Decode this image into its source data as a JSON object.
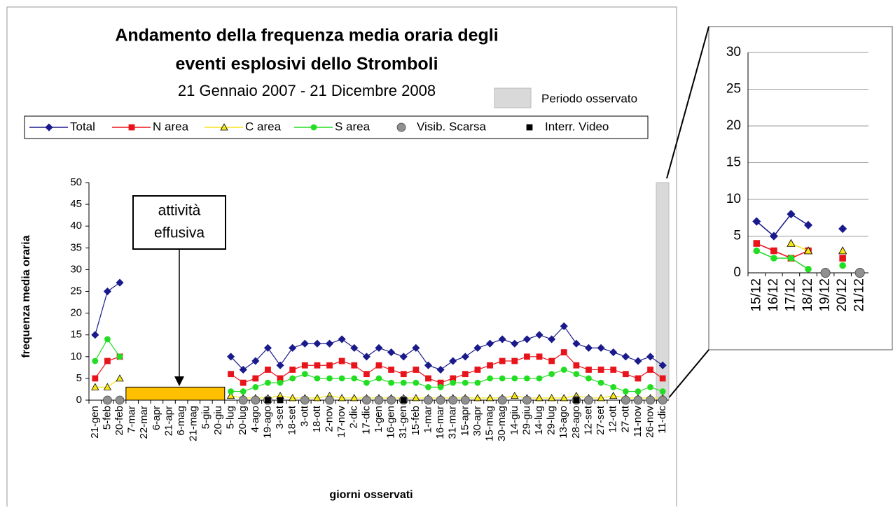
{
  "chart_data": [
    {
      "type": "line",
      "title": [
        "Andamento della frequenza media oraria degli",
        "eventi esplosivi dello Stromboli"
      ],
      "subtitle": "21 Gennaio 2007 - 21 Dicembre 2008",
      "shaded_legend": "Periodo osservato",
      "annotation": [
        "attività",
        "effusiva"
      ],
      "y_label": "frequenza media oraria",
      "x_label": "giorni osservati",
      "categories": [
        "21-gen",
        "5-feb",
        "20-feb",
        "7-mar",
        "22-mar",
        "6-apr",
        "21-apr",
        "6-mag",
        "21-mag",
        "5-giu",
        "20-giu",
        "5-lug",
        "20-lug",
        "4-ago",
        "19-ago",
        "3-set",
        "18-set",
        "3-ott",
        "18-ott",
        "2-nov",
        "17-nov",
        "2-dic",
        "17-dic",
        "1-gen",
        "16-gen",
        "31-gen",
        "15-feb",
        "1-mar",
        "16-mar",
        "31-mar",
        "15-apr",
        "30-apr",
        "15-mag",
        "30-mag",
        "14-giu",
        "29-giu",
        "14-lug",
        "29-lug",
        "13-ago",
        "28-ago",
        "12-set",
        "27-set",
        "12-ott",
        "27-ott",
        "11-nov",
        "26-nov",
        "11-dic"
      ],
      "ylim": [
        0,
        50
      ],
      "yticks": [
        0,
        5,
        10,
        15,
        20,
        25,
        30,
        35,
        40,
        45,
        50
      ],
      "series": [
        {
          "name": "Total",
          "color": "#1a1a8c",
          "marker": "diamond",
          "line": true,
          "values": [
            15,
            25,
            27,
            null,
            null,
            null,
            null,
            null,
            null,
            null,
            null,
            10,
            7,
            9,
            12,
            8,
            12,
            13,
            13,
            13,
            14,
            12,
            10,
            12,
            11,
            10,
            12,
            8,
            7,
            9,
            10,
            12,
            13,
            14,
            13,
            14,
            15,
            14,
            17,
            13,
            12,
            12,
            11,
            10,
            9,
            10,
            8
          ]
        },
        {
          "name": "N area",
          "color": "#e8141c",
          "marker": "square",
          "line": true,
          "values": [
            5,
            9,
            10,
            null,
            null,
            null,
            null,
            null,
            null,
            null,
            null,
            6,
            4,
            5,
            7,
            5,
            7,
            8,
            8,
            8,
            9,
            8,
            6,
            8,
            7,
            6,
            7,
            5,
            4,
            5,
            6,
            7,
            8,
            9,
            9,
            10,
            10,
            9,
            11,
            8,
            7,
            7,
            7,
            6,
            5,
            7,
            5
          ]
        },
        {
          "name": "C area",
          "color": "#f5e61a",
          "marker": "triangle",
          "line": true,
          "values": [
            3,
            3,
            5,
            null,
            null,
            null,
            null,
            null,
            null,
            null,
            null,
            1,
            0.5,
            0.5,
            0.5,
            1,
            0.5,
            0.5,
            0.5,
            1,
            0.5,
            0.5,
            0.5,
            0.5,
            0.5,
            0.5,
            0.5,
            0.5,
            0.5,
            0.5,
            0.5,
            0.5,
            0.5,
            0.5,
            1,
            0.5,
            0.5,
            0.5,
            0.5,
            1,
            0.5,
            0.5,
            1,
            0.5,
            0.5,
            0.5,
            0.5
          ]
        },
        {
          "name": "S area",
          "color": "#22dd22",
          "marker": "circle",
          "line": true,
          "values": [
            9,
            14,
            10,
            null,
            null,
            null,
            null,
            null,
            null,
            null,
            null,
            2,
            2,
            3,
            4,
            4,
            5,
            6,
            5,
            5,
            5,
            5,
            4,
            5,
            4,
            4,
            4,
            3,
            3,
            4,
            4,
            4,
            5,
            5,
            5,
            5,
            5,
            6,
            7,
            6,
            5,
            4,
            3,
            2,
            2,
            3,
            2
          ]
        },
        {
          "name": "Visib. Scarsa",
          "color": "#909090",
          "marker": "bigcircle",
          "line": false,
          "values": [
            null,
            0,
            0,
            null,
            null,
            null,
            null,
            null,
            null,
            null,
            null,
            null,
            0,
            0,
            0,
            null,
            null,
            0,
            null,
            0,
            null,
            null,
            0,
            0,
            0,
            0,
            null,
            0,
            0,
            0,
            0,
            null,
            null,
            0,
            null,
            0,
            null,
            null,
            null,
            0,
            0,
            null,
            null,
            0,
            0,
            0,
            0
          ]
        },
        {
          "name": "Interr. Video",
          "color": "#000000",
          "marker": "square",
          "line": false,
          "values": [
            null,
            null,
            null,
            null,
            null,
            null,
            null,
            null,
            null,
            null,
            null,
            null,
            null,
            null,
            0,
            0,
            null,
            null,
            null,
            null,
            null,
            null,
            null,
            null,
            null,
            0,
            null,
            null,
            null,
            null,
            null,
            null,
            null,
            null,
            null,
            null,
            null,
            null,
            null,
            0,
            null,
            null,
            null,
            null,
            null,
            null,
            null
          ]
        }
      ]
    },
    {
      "type": "line",
      "categories": [
        "15/12",
        "16/12",
        "17/12",
        "18/12",
        "19/12",
        "20/12",
        "21/12"
      ],
      "ylim": [
        0,
        30
      ],
      "yticks": [
        0,
        5,
        10,
        15,
        20,
        25,
        30
      ],
      "grid": true,
      "series": [
        {
          "name": "Total",
          "color": "#1a1a8c",
          "marker": "diamond",
          "line": true,
          "values": [
            7,
            5,
            8,
            6.5,
            null,
            6,
            null
          ]
        },
        {
          "name": "N area",
          "color": "#e8141c",
          "marker": "square",
          "line": true,
          "values": [
            4,
            3,
            2,
            3,
            null,
            2,
            null
          ]
        },
        {
          "name": "C area",
          "color": "#f5e61a",
          "marker": "triangle",
          "line": true,
          "values": [
            null,
            null,
            4,
            3,
            null,
            3,
            null
          ]
        },
        {
          "name": "S area",
          "color": "#22dd22",
          "marker": "circle",
          "line": true,
          "values": [
            3,
            2,
            2,
            0.5,
            null,
            1,
            null
          ]
        },
        {
          "name": "Visib. Scarsa",
          "color": "#909090",
          "marker": "bigcircle",
          "line": false,
          "values": [
            null,
            null,
            null,
            null,
            0,
            null,
            0
          ]
        }
      ]
    }
  ]
}
